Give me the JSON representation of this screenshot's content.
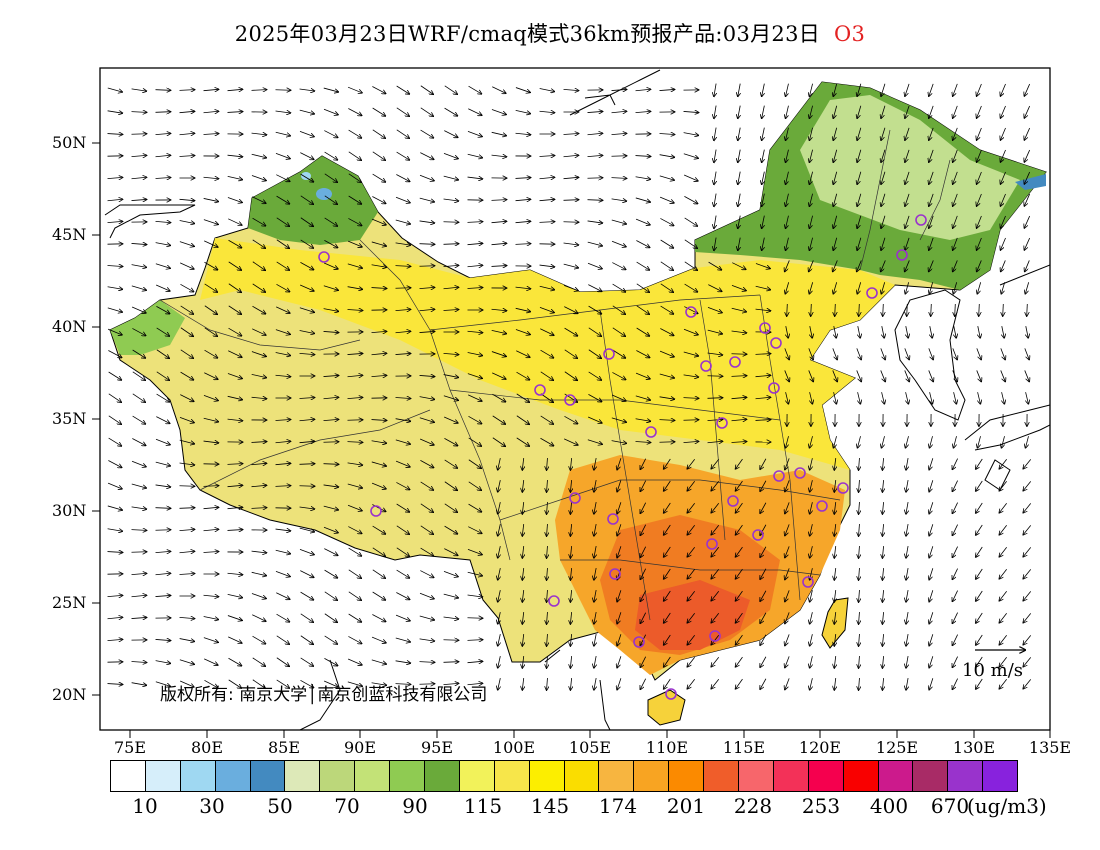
{
  "title": {
    "main": "2025年03月23日WRF/cmaq模式36km预报产品:03月23日",
    "species": "O3"
  },
  "map": {
    "lat_labels": [
      "50N",
      "45N",
      "40N",
      "35N",
      "30N",
      "25N",
      "20N"
    ],
    "lon_labels": [
      "75E",
      "80E",
      "85E",
      "90E",
      "95E",
      "100E",
      "105E",
      "110E",
      "115E",
      "120E",
      "125E",
      "130E",
      "135E"
    ],
    "copyright": "版权所有: 南京大学│南京创蓝科技有限公司",
    "wind_scale_label": "10 m/s",
    "colors": {
      "low_green": "#8fcb52",
      "mid_green": "#6aaa3a",
      "pale_green": "#c2df8f",
      "yellow": "#f7e64a",
      "light_yellow": "#ede27a",
      "gold": "#fad62b",
      "orange": "#f6a62a",
      "dark_orange": "#f07c22",
      "red_orange": "#ec5b2a",
      "marker_purple": "#9a33cc"
    }
  },
  "colorbar": {
    "colors": [
      "#ffffff",
      "#d6eefa",
      "#9fd8f2",
      "#6aaede",
      "#438ac0",
      "#dde9b8",
      "#bcd77a",
      "#c3e277",
      "#8fcb52",
      "#6aaa3a",
      "#f2f25a",
      "#f7e64a",
      "#fcee00",
      "#fadd00",
      "#f7b540",
      "#f8a422",
      "#fb8a00",
      "#f05d2a",
      "#f7666b",
      "#f33158",
      "#f5004e",
      "#f90000",
      "#cc1a8c",
      "#a82b66",
      "#9933cc",
      "#8822dd"
    ],
    "tick_labels": [
      "10",
      "30",
      "50",
      "70",
      "90",
      "115",
      "145",
      "174",
      "201",
      "228",
      "253",
      "400",
      "670"
    ],
    "unit": "(ug/m3)"
  }
}
